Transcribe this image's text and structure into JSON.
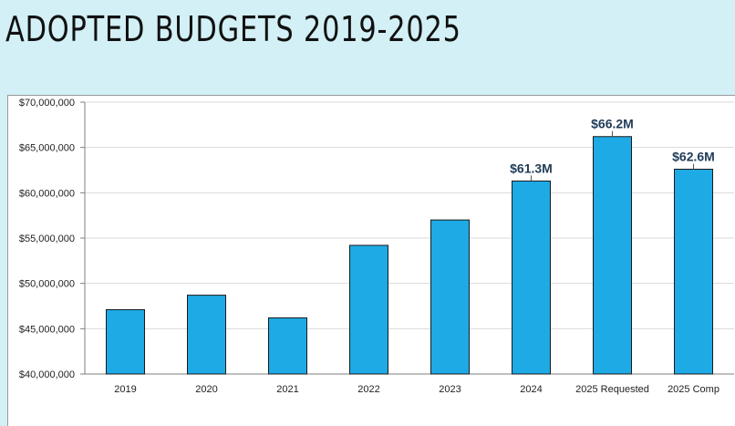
{
  "page": {
    "title": "ADOPTED BUDGETS 2019-2025"
  },
  "chart_data": {
    "type": "bar",
    "title": "",
    "xlabel": "",
    "ylabel": "",
    "categories": [
      "2019",
      "2020",
      "2021",
      "2022",
      "2023",
      "2024",
      "2025 Requested",
      "2025 Comp"
    ],
    "values": [
      47100000,
      48700000,
      46200000,
      54200000,
      57000000,
      61300000,
      66200000,
      62600000
    ],
    "data_labels": [
      "",
      "",
      "",
      "",
      "",
      "$61.3M",
      "$66.2M",
      "$62.6M"
    ],
    "ylim": [
      40000000,
      70000000
    ],
    "yticks": [
      40000000,
      45000000,
      50000000,
      55000000,
      60000000,
      65000000,
      70000000
    ],
    "ytick_labels": [
      "$40,000,000",
      "$45,000,000",
      "$50,000,000",
      "$55,000,000",
      "$60,000,000",
      "$65,000,000",
      "$70,000,000"
    ],
    "grid": true,
    "legend": "none",
    "colors": {
      "bar": "#1eaae4",
      "bar_edge": "#1a1a1a",
      "label": "#1f3b57",
      "grid": "#d9d9d9",
      "axis": "#7f7f7f"
    }
  }
}
